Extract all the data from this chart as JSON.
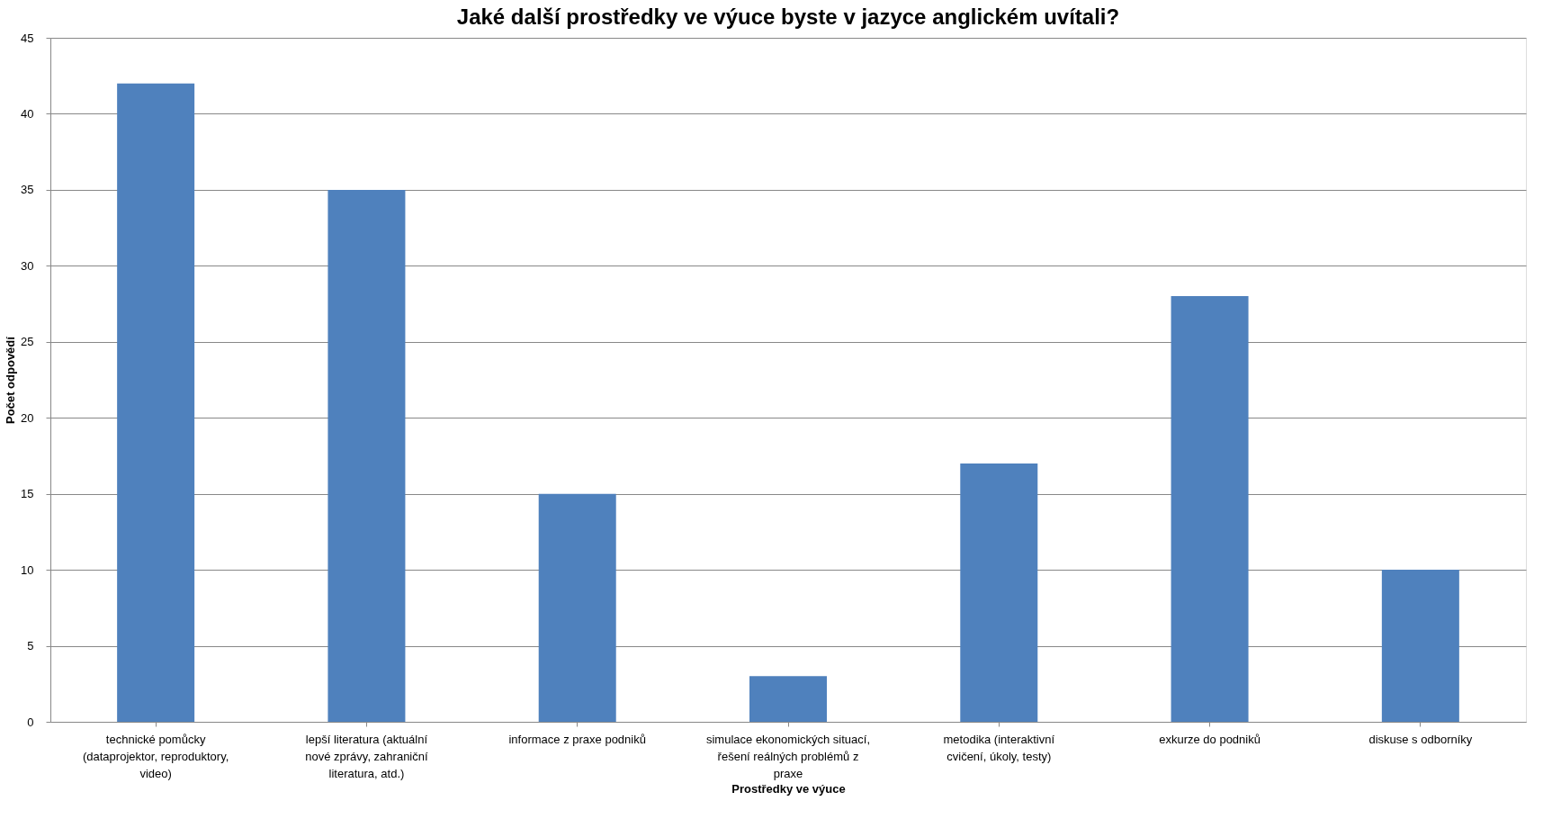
{
  "chart_data": {
    "type": "bar",
    "title": "Jaké další prostředky ve výuce byste v jazyce anglickém uvítali?",
    "xlabel": "Prostředky ve výuce",
    "ylabel": "Počet odpovědí",
    "categories": [
      "technické pomůcky (dataprojektor, reproduktory, video)",
      "lepší literatura (aktuální nové zprávy, zahraniční literatura, atd.)",
      "informace z praxe podniků",
      "simulace ekonomických situací, řešení reálných problémů z praxe",
      "metodika (interaktivní cvičení, úkoly, testy)",
      "exkurze do podniků",
      "diskuse s odborníky"
    ],
    "values": [
      42,
      35,
      15,
      3,
      17,
      28,
      10
    ],
    "color": "#4f81bd",
    "ylim": [
      0,
      45
    ],
    "yticks": [
      0,
      5,
      10,
      15,
      20,
      25,
      30,
      35,
      40,
      45
    ],
    "grid": "y"
  }
}
